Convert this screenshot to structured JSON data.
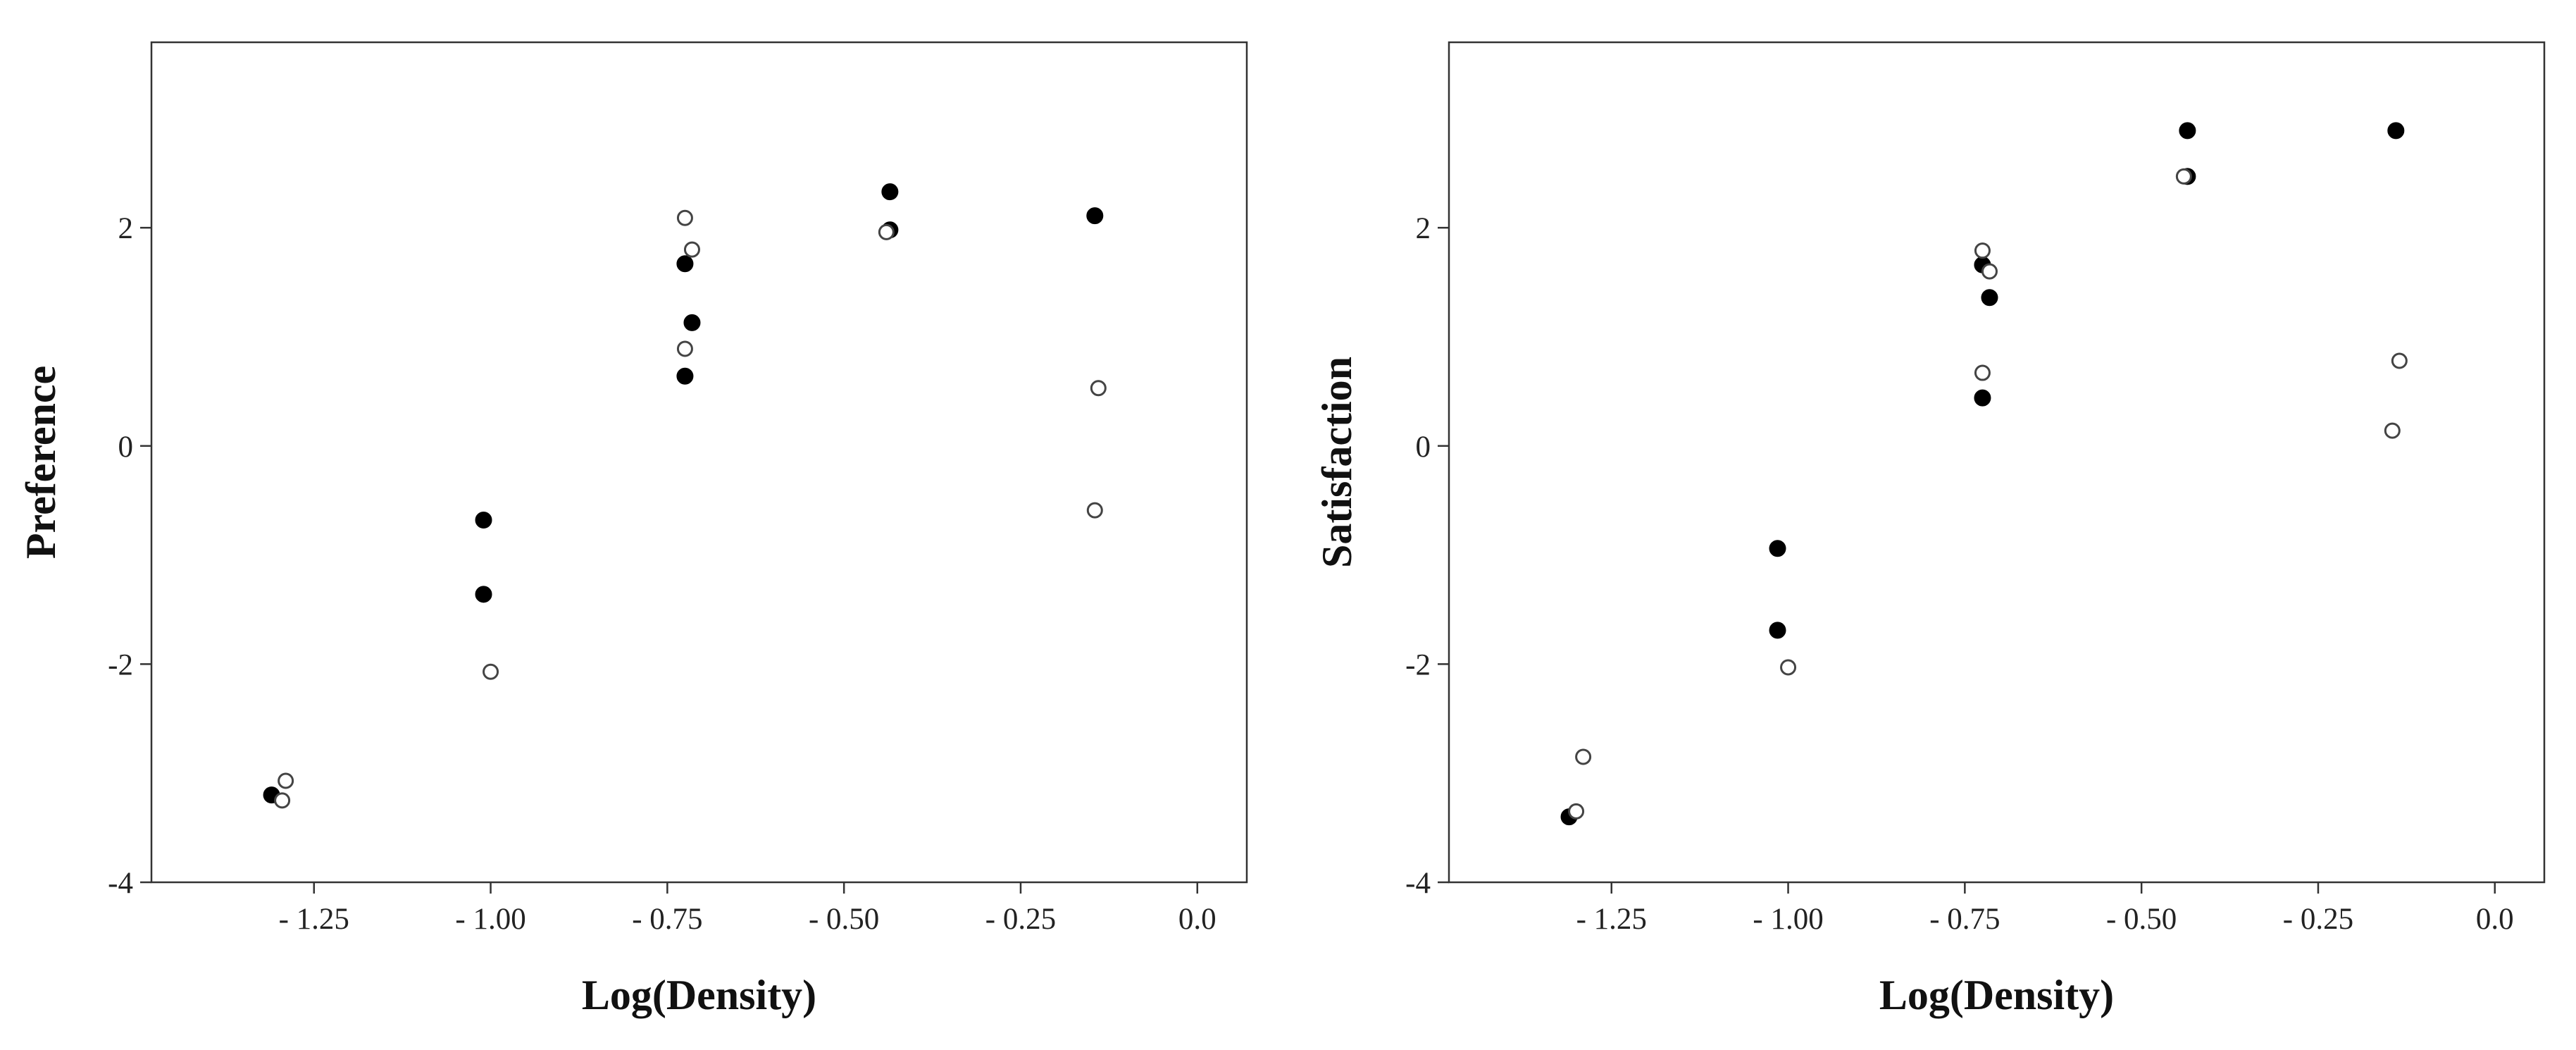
{
  "colors": {
    "filled_marker": "#000000",
    "open_marker_stroke": "#444444",
    "frame": "#333333"
  },
  "chart_data": [
    {
      "type": "scatter",
      "title": "",
      "xlabel": "Log(Density)",
      "ylabel": "Preference",
      "xlim": [
        -1.48,
        0.07
      ],
      "ylim": [
        -4,
        3.7
      ],
      "xticks": [
        -1.25,
        -1.0,
        -0.75,
        -0.5,
        -0.25,
        0.0
      ],
      "xtick_labels": [
        "- 1.25",
        "- 1.00",
        "- 0.75",
        "- 0.50",
        "- 0.25",
        "0.0"
      ],
      "yticks": [
        -4,
        -2,
        0,
        2
      ],
      "ytick_labels": [
        "-4",
        "-2",
        "0",
        "2"
      ],
      "grid": false,
      "legend": "none",
      "series": [
        {
          "marker": "filled",
          "x": [
            -1.31,
            -1.01,
            -1.01,
            -0.725,
            -0.725,
            -0.715,
            -0.435,
            -0.435,
            -0.145
          ],
          "y": [
            -3.2,
            -0.68,
            -1.36,
            1.67,
            0.64,
            1.13,
            1.98,
            2.33,
            2.11
          ]
        },
        {
          "marker": "open",
          "x": [
            -1.295,
            -1.29,
            -1.0,
            -0.725,
            -0.715,
            -0.725,
            -0.44,
            -0.14,
            -0.145
          ],
          "y": [
            -3.25,
            -3.07,
            -2.07,
            2.09,
            1.8,
            0.89,
            1.96,
            0.53,
            -0.59
          ]
        }
      ]
    },
    {
      "type": "scatter",
      "title": "",
      "xlabel": "Log(Density)",
      "ylabel": "Satisfaction",
      "xlim": [
        -1.48,
        0.07
      ],
      "ylim": [
        -4,
        3.7
      ],
      "xticks": [
        -1.25,
        -1.0,
        -0.75,
        -0.5,
        -0.25,
        0.0
      ],
      "xtick_labels": [
        "- 1.25",
        "- 1.00",
        "- 0.75",
        "- 0.50",
        "- 0.25",
        "0.0"
      ],
      "yticks": [
        -4,
        -2,
        0,
        2
      ],
      "ytick_labels": [
        "-4",
        "-2",
        "0",
        "2"
      ],
      "grid": false,
      "legend": "none",
      "series": [
        {
          "marker": "filled",
          "x": [
            -1.31,
            -1.015,
            -1.015,
            -0.725,
            -0.725,
            -0.715,
            -0.435,
            -0.435,
            -0.14
          ],
          "y": [
            -3.4,
            -0.94,
            -1.69,
            1.66,
            0.44,
            1.36,
            2.47,
            2.89,
            2.89
          ]
        },
        {
          "marker": "open",
          "x": [
            -1.3,
            -1.29,
            -1.0,
            -0.725,
            -0.715,
            -0.725,
            -0.44,
            -0.135,
            -0.145
          ],
          "y": [
            -3.35,
            -2.85,
            -2.03,
            1.79,
            1.6,
            0.67,
            2.47,
            0.78,
            0.14
          ]
        }
      ]
    }
  ]
}
